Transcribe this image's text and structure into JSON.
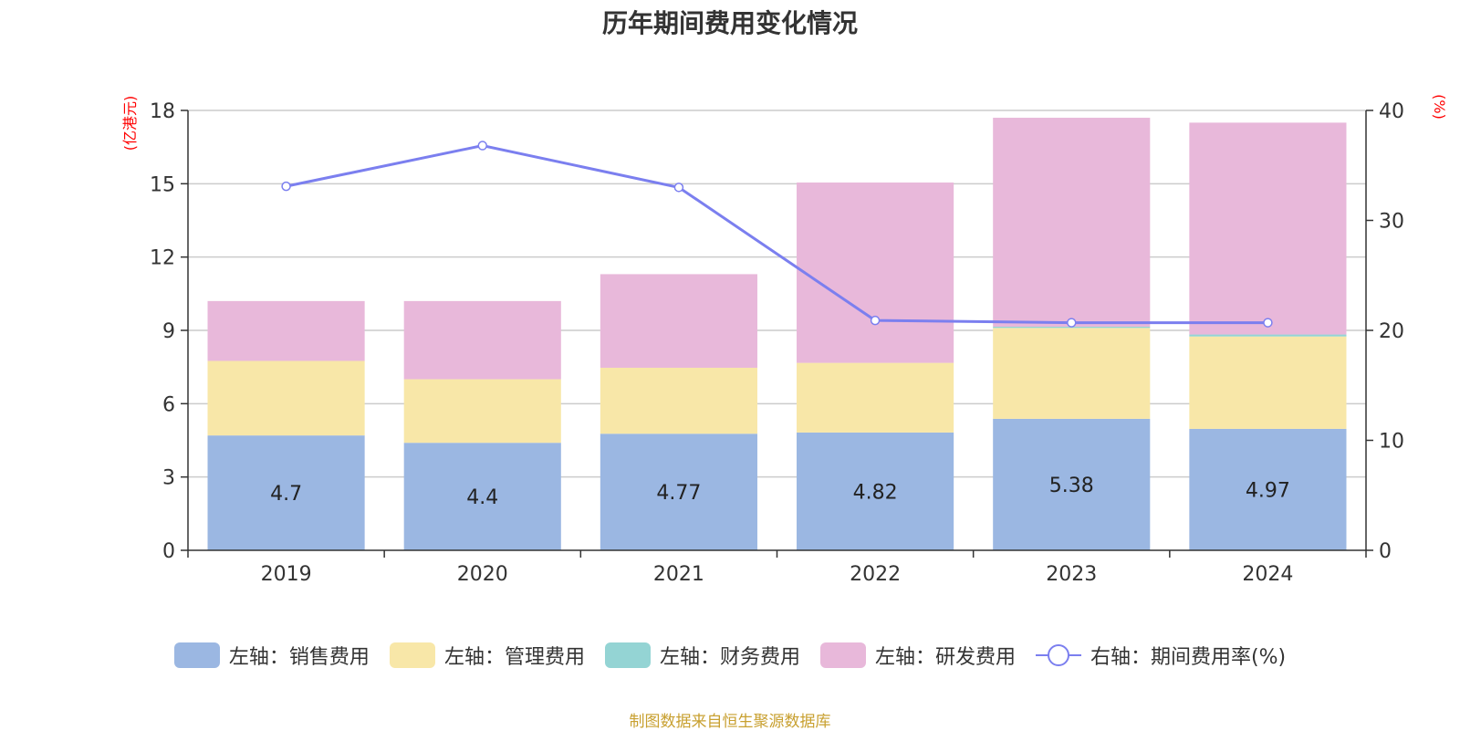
{
  "chart_data": {
    "type": "bar",
    "stacked": true,
    "title": "历年期间费用变化情况",
    "categories": [
      "2019",
      "2020",
      "2021",
      "2022",
      "2023",
      "2024"
    ],
    "y_left": {
      "unit": "(亿港元)",
      "ticks": [
        "0",
        "3",
        "6",
        "9",
        "12",
        "15",
        "18"
      ],
      "range": [
        0,
        18
      ]
    },
    "y_right": {
      "unit": "(%)",
      "ticks": [
        "0",
        "10",
        "20",
        "30",
        "40"
      ],
      "range": [
        0,
        40
      ]
    },
    "series": [
      {
        "name": "左轴：销售费用",
        "color": "#9bb7e2",
        "values": [
          4.7,
          4.4,
          4.77,
          4.82,
          5.38,
          4.97
        ],
        "labels": [
          "4.7",
          "4.4",
          "4.77",
          "4.82",
          "5.38",
          "4.97"
        ]
      },
      {
        "name": "左轴：管理费用",
        "color": "#f8e7a8",
        "values": [
          3.05,
          2.6,
          2.7,
          2.85,
          3.72,
          3.78
        ]
      },
      {
        "name": "左轴：财务费用",
        "color": "#94d4d4",
        "values": [
          0.0,
          0.0,
          0.0,
          0.0,
          0.05,
          0.08
        ]
      },
      {
        "name": "左轴：研发费用",
        "color": "#e8b8da",
        "values": [
          2.45,
          3.2,
          3.83,
          7.38,
          8.55,
          8.67
        ]
      },
      {
        "name": "右轴：期间费用率(%)",
        "color": "#7b7fef",
        "axis": "right",
        "type": "line",
        "values": [
          33.1,
          36.8,
          33.0,
          20.9,
          20.7,
          20.7
        ]
      }
    ],
    "legend_position": "bottom",
    "grid": true
  },
  "source_note": "制图数据来自恒生聚源数据库"
}
